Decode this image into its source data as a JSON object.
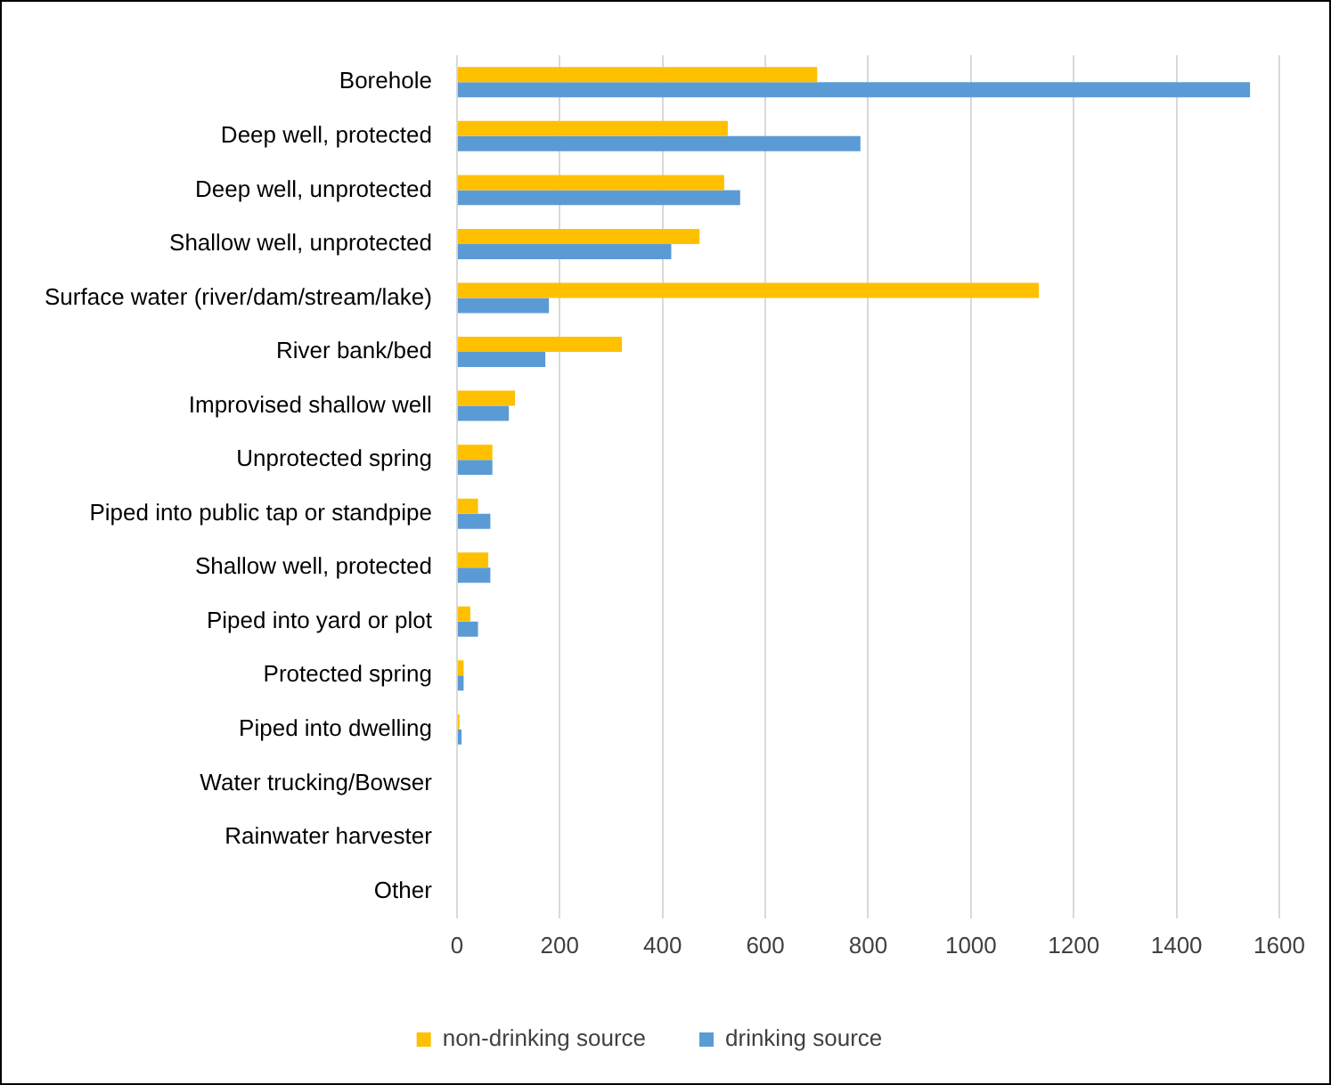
{
  "chart_data": {
    "type": "bar",
    "orientation": "horizontal",
    "categories": [
      "Borehole",
      "Deep well, protected",
      "Deep well, unprotected",
      "Shallow well, unprotected",
      "Surface water (river/dam/stream/lake)",
      "River bank/bed",
      "Improvised shallow well",
      "Unprotected spring",
      "Piped into public tap or standpipe",
      "Shallow well, protected",
      "Piped into yard or plot",
      "Protected spring",
      "Piped into dwelling",
      "Water trucking/Bowser",
      "Rainwater harvester",
      "Other"
    ],
    "series": [
      {
        "name": "non-drinking source",
        "color": "#ffc000",
        "values": [
          701,
          527,
          520,
          472,
          1132,
          321,
          113,
          69,
          41,
          61,
          26,
          13,
          5,
          0,
          0,
          0
        ]
      },
      {
        "name": "drinking source",
        "color": "#5b9bd5",
        "values": [
          1543,
          785,
          551,
          417,
          179,
          172,
          101,
          69,
          65,
          65,
          41,
          13,
          9,
          0,
          0,
          0
        ]
      }
    ],
    "xlim": [
      0,
      1600
    ],
    "xticks": [
      0,
      200,
      400,
      600,
      800,
      1000,
      1200,
      1400,
      1600
    ],
    "grid": "x",
    "legend": "bottom"
  }
}
